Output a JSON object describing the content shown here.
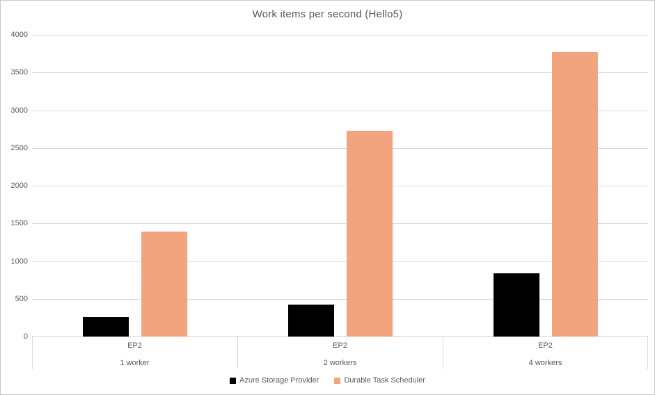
{
  "chart_data": {
    "type": "bar",
    "title": "Work items per second (Hello5)",
    "categories": [
      {
        "group_label": "EP2",
        "sub_label": "1 worker"
      },
      {
        "group_label": "EP2",
        "sub_label": "2 workers"
      },
      {
        "group_label": "EP2",
        "sub_label": "4 workers"
      }
    ],
    "series": [
      {
        "name": "Azure Storage Provider",
        "color": "#000000",
        "values": [
          260,
          420,
          840
        ]
      },
      {
        "name": "Durable Task Scheduler",
        "color": "#F2A47E",
        "values": [
          1390,
          2730,
          3770
        ]
      }
    ],
    "y_axis": {
      "min": 0,
      "max": 4000,
      "step": 500,
      "tick_labels": [
        "0",
        "500",
        "1000",
        "1500",
        "2000",
        "2500",
        "3000",
        "3500",
        "4000"
      ]
    },
    "grid": true,
    "legend_position": "bottom",
    "colors": {
      "background": "#FFFFFF",
      "chart_border": "#C8C8C8",
      "gridline": "#D9D9D9",
      "text": "#595959"
    }
  }
}
